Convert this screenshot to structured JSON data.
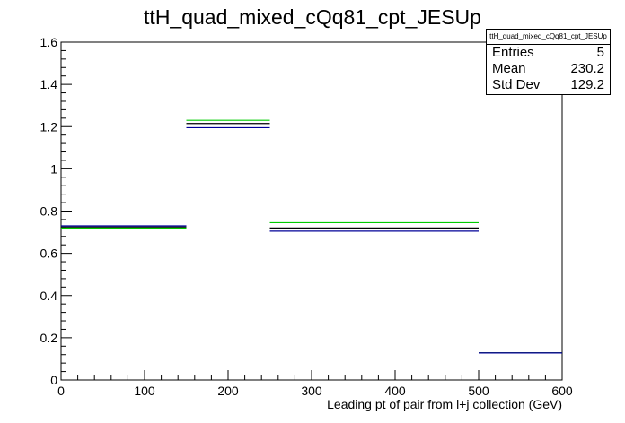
{
  "chart_data": {
    "type": "histogram",
    "title": "ttH_quad_mixed_cQq81_cpt_JESUp",
    "xlabel": "Leading pt of pair from l+j collection (GeV)",
    "ylabel": "",
    "xlim": [
      0,
      600
    ],
    "ylim": [
      0,
      1.6
    ],
    "x_ticks": [
      "0",
      "100",
      "200",
      "300",
      "400",
      "500",
      "600"
    ],
    "y_ticks": [
      "0",
      "0.2",
      "0.4",
      "0.6",
      "0.8",
      "1",
      "1.2",
      "1.4",
      "1.6"
    ],
    "bin_edges": [
      0,
      150,
      250,
      500,
      600
    ],
    "grid": false,
    "series": [
      {
        "color": "#00cc00",
        "values": [
          0.72,
          1.23,
          0.745,
          0.128
        ]
      },
      {
        "color": "#000000",
        "values": [
          0.725,
          1.215,
          0.72,
          0.128
        ]
      },
      {
        "color": "#000099",
        "values": [
          0.73,
          1.195,
          0.705,
          0.128
        ]
      }
    ],
    "stats": {
      "name": "ttH_quad_mixed_cQq81_cpt_JESUp",
      "entries_label": "Entries",
      "entries": "5",
      "mean_label": "Mean",
      "mean": "230.2",
      "stddev_label": "Std Dev",
      "stddev": "129.2"
    }
  }
}
